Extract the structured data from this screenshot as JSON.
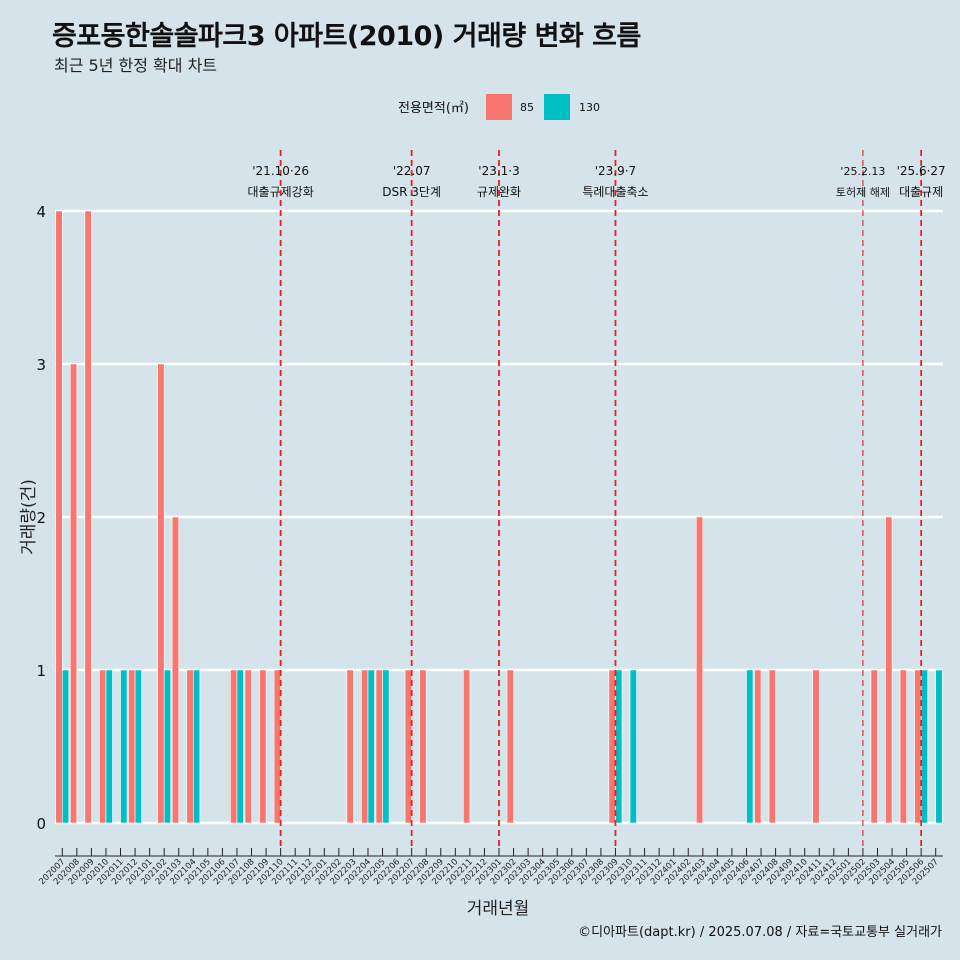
{
  "header": {
    "title": "증포동한솔솔파크3 아파트(2010) 거래량 변화 흐름",
    "subtitle": "최근 5년 한정 확대 차트"
  },
  "caption": "©디아파트(dapt.kr) / 2025.07.08 / 자료=국토교통부 실거래가",
  "colors": {
    "s85": "#f8766d",
    "s130": "#00bfc4",
    "event": "#e8201c",
    "grid": "#ffffff"
  },
  "chart_data": {
    "type": "bar",
    "xlabel": "거래년월",
    "ylabel": "거래량(건)",
    "ylim": [
      0,
      4
    ],
    "yticks": [
      0,
      1,
      2,
      3,
      4
    ],
    "grid": "horizontal",
    "legend": {
      "title": "전용면적(㎡)",
      "position": "top"
    },
    "categories": [
      "202007",
      "202008",
      "202009",
      "202010",
      "202011",
      "202012",
      "202101",
      "202102",
      "202103",
      "202104",
      "202105",
      "202106",
      "202107",
      "202108",
      "202109",
      "202110",
      "202111",
      "202112",
      "202201",
      "202202",
      "202203",
      "202204",
      "202205",
      "202206",
      "202207",
      "202208",
      "202209",
      "202210",
      "202211",
      "202212",
      "202301",
      "202302",
      "202303",
      "202304",
      "202305",
      "202306",
      "202307",
      "202308",
      "202309",
      "202310",
      "202311",
      "202312",
      "202401",
      "202402",
      "202403",
      "202404",
      "202405",
      "202406",
      "202407",
      "202408",
      "202409",
      "202410",
      "202411",
      "202412",
      "202501",
      "202502",
      "202503",
      "202504",
      "202505",
      "202506",
      "202507"
    ],
    "series": [
      {
        "name": "85",
        "values": [
          4,
          3,
          4,
          1,
          0,
          1,
          0,
          3,
          2,
          1,
          0,
          0,
          1,
          1,
          1,
          1,
          0,
          0,
          0,
          0,
          1,
          1,
          1,
          0,
          1,
          1,
          0,
          0,
          1,
          0,
          0,
          1,
          0,
          0,
          0,
          0,
          0,
          0,
          1,
          0,
          0,
          0,
          0,
          0,
          2,
          0,
          0,
          0,
          1,
          1,
          0,
          0,
          1,
          0,
          0,
          0,
          1,
          2,
          1,
          1,
          0
        ]
      },
      {
        "name": "130",
        "values": [
          1,
          0,
          0,
          1,
          1,
          1,
          0,
          1,
          0,
          1,
          0,
          0,
          1,
          0,
          0,
          0,
          0,
          0,
          0,
          0,
          0,
          1,
          1,
          0,
          0,
          0,
          0,
          0,
          0,
          0,
          0,
          0,
          0,
          0,
          0,
          0,
          0,
          0,
          1,
          1,
          0,
          0,
          0,
          0,
          0,
          0,
          0,
          1,
          0,
          0,
          0,
          0,
          0,
          0,
          0,
          0,
          0,
          0,
          0,
          1,
          1
        ]
      }
    ],
    "events": [
      {
        "x": "202110",
        "date": "'21.10·26",
        "label": "대출규제강화",
        "solid": true
      },
      {
        "x": "202207",
        "date": "'22.07",
        "label": "DSR 3단계",
        "solid": true
      },
      {
        "x": "202301",
        "date": "'23.1·3",
        "label": "규제완화",
        "solid": true
      },
      {
        "x": "202309",
        "date": "'23.9·7",
        "label": "특례대출축소",
        "solid": true
      },
      {
        "x": "202502",
        "date": "'25.2.13",
        "label": "토허제 해제",
        "solid": false
      },
      {
        "x": "202506",
        "date": "'25.6·27",
        "label": "대출규제",
        "solid": true
      }
    ]
  }
}
